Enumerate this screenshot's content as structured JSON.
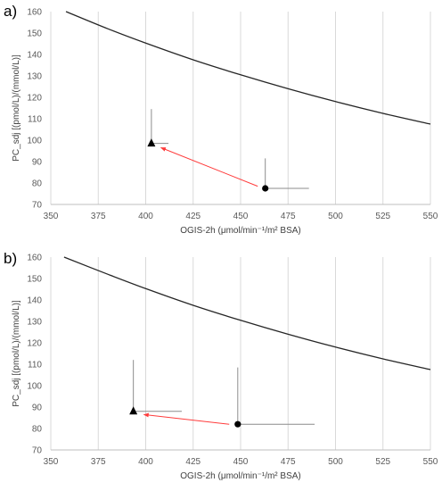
{
  "chart_data": [
    {
      "panel_label": "a)",
      "type": "scatter",
      "xlabel": "OGIS-2h (μmol/min⁻¹/m² BSA)",
      "ylabel": "PC_sdj [(pmol/L)/(mmol/L)]",
      "xlim": [
        350,
        550
      ],
      "ylim": [
        70,
        160
      ],
      "xticks": [
        "350",
        "375",
        "400",
        "425",
        "450",
        "475",
        "500",
        "525",
        "550"
      ],
      "yticks": [
        "70",
        "80",
        "90",
        "100",
        "110",
        "120",
        "130",
        "140",
        "150",
        "160"
      ],
      "grid": "vertical",
      "curve": {
        "x": [
          358,
          380,
          400,
          425,
          450,
          475,
          500,
          525,
          550
        ],
        "y": [
          160,
          152,
          145.3,
          137.5,
          130.5,
          124,
          118,
          112.5,
          107.5
        ]
      },
      "points": [
        {
          "marker": "triangle",
          "x": 403,
          "y": 98.5,
          "err_y_up": 114.5,
          "err_x_right": 412
        },
        {
          "marker": "circle",
          "x": 463,
          "y": 77.5,
          "err_y_up": 91.5,
          "err_x_right": 486
        }
      ],
      "arrow": {
        "from": [
          459,
          78.5
        ],
        "to": [
          408,
          96.5
        ],
        "color": "#ff3b3b"
      }
    },
    {
      "panel_label": "b)",
      "type": "scatter",
      "xlabel": "OGIS-2h (μmol/min⁻¹/m² BSA)",
      "ylabel": "PC_sdj [(pmol/L)/(mmol/L)]",
      "xlim": [
        350,
        550
      ],
      "ylim": [
        70,
        160
      ],
      "xticks": [
        "350",
        "375",
        "400",
        "425",
        "450",
        "475",
        "500",
        "525",
        "550"
      ],
      "yticks": [
        "70",
        "80",
        "90",
        "100",
        "110",
        "120",
        "130",
        "140",
        "150",
        "160"
      ],
      "grid": "vertical",
      "curve": {
        "x": [
          357,
          380,
          400,
          425,
          450,
          475,
          500,
          525,
          550
        ],
        "y": [
          160,
          152,
          145.3,
          137.5,
          130.5,
          124,
          118,
          112.5,
          107.5
        ]
      },
      "points": [
        {
          "marker": "triangle",
          "x": 393.5,
          "y": 88,
          "err_y_up": 112,
          "err_x_right": 419
        },
        {
          "marker": "circle",
          "x": 448.5,
          "y": 82,
          "err_y_up": 108.5,
          "err_x_right": 489
        }
      ],
      "arrow": {
        "from": [
          444,
          82
        ],
        "to": [
          399,
          86.5
        ],
        "color": "#ff3b3b"
      }
    }
  ]
}
